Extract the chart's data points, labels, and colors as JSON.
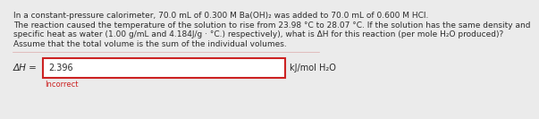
{
  "body_text_line1": "In a constant-pressure calorimeter, 70.0 mL of 0.300 M Ba(OH)₂ was added to 70.0 mL of 0.600 M HCl.",
  "body_text_line2": "The reaction caused the temperature of the solution to rise from 23.98 °C to 28.07 °C. If the solution has the same density and",
  "body_text_line3": "specific heat as water (1.00 g/mL and 4.184J/g · °C.) respectively), what is ΔH for this reaction (per mole H₂O produced)?",
  "body_text_line4": "Assume that the total volume is the sum of the individual volumes.",
  "delta_h_label": "ΔH =",
  "answer_value": "2.396",
  "units_label": "kJ/mol H₂O",
  "incorrect_label": "Incorrect",
  "background_color": "#ebebeb",
  "box_border_color": "#cc2222",
  "box_fill_color": "#f7f7f7",
  "text_color": "#2b2b2b",
  "incorrect_color": "#cc2222",
  "font_size_body": 6.5,
  "font_size_answer": 7.0,
  "font_size_label": 7.5,
  "font_size_incorrect": 6.0
}
